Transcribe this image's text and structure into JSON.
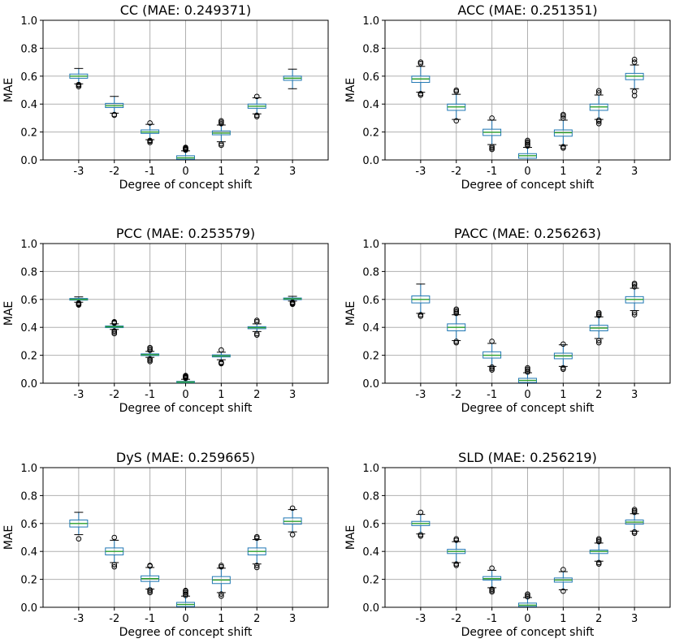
{
  "chart_data": [
    {
      "type": "box",
      "title": "CC (MAE: 0.249371)",
      "xlabel": "Degree of concept shift",
      "ylabel": "MAE",
      "ylim": [
        0,
        1.0
      ],
      "categories": [
        "-3",
        "-2",
        "-1",
        "0",
        "1",
        "2",
        "3"
      ],
      "yticks": [
        "0.0",
        "0.2",
        "0.4",
        "0.6",
        "0.8",
        "1.0"
      ],
      "boxes": [
        {
          "q1": 0.585,
          "median": 0.6,
          "q3": 0.615,
          "whislo": 0.545,
          "whishi": 0.655,
          "fliers": [
            0.525,
            0.535,
            0.54
          ]
        },
        {
          "q1": 0.375,
          "median": 0.388,
          "q3": 0.405,
          "whislo": 0.335,
          "whishi": 0.455,
          "fliers": [
            0.32,
            0.325
          ]
        },
        {
          "q1": 0.19,
          "median": 0.2,
          "q3": 0.215,
          "whislo": 0.145,
          "whishi": 0.255,
          "fliers": [
            0.125,
            0.135,
            0.14,
            0.265
          ]
        },
        {
          "q1": 0.005,
          "median": 0.015,
          "q3": 0.03,
          "whislo": 0.0,
          "whishi": 0.065,
          "fliers": [
            0.07,
            0.075,
            0.08,
            0.085,
            0.09
          ]
        },
        {
          "q1": 0.18,
          "median": 0.192,
          "q3": 0.208,
          "whislo": 0.13,
          "whishi": 0.25,
          "fliers": [
            0.105,
            0.115,
            0.26,
            0.27,
            0.28
          ]
        },
        {
          "q1": 0.37,
          "median": 0.385,
          "q3": 0.4,
          "whislo": 0.33,
          "whishi": 0.445,
          "fliers": [
            0.31,
            0.32,
            0.455
          ]
        },
        {
          "q1": 0.57,
          "median": 0.585,
          "q3": 0.6,
          "whislo": 0.51,
          "whishi": 0.65,
          "fliers": []
        }
      ]
    },
    {
      "type": "box",
      "title": "ACC (MAE: 0.251351)",
      "xlabel": "Degree of concept shift",
      "ylabel": "MAE",
      "ylim": [
        0,
        1.0
      ],
      "categories": [
        "-3",
        "-2",
        "-1",
        "0",
        "1",
        "2",
        "3"
      ],
      "yticks": [
        "0.0",
        "0.2",
        "0.4",
        "0.6",
        "0.8",
        "1.0"
      ],
      "boxes": [
        {
          "q1": 0.555,
          "median": 0.58,
          "q3": 0.6,
          "whislo": 0.485,
          "whishi": 0.67,
          "fliers": [
            0.465,
            0.475,
            0.69,
            0.7
          ]
        },
        {
          "q1": 0.355,
          "median": 0.38,
          "q3": 0.4,
          "whislo": 0.29,
          "whishi": 0.47,
          "fliers": [
            0.28,
            0.49,
            0.5
          ]
        },
        {
          "q1": 0.175,
          "median": 0.198,
          "q3": 0.22,
          "whislo": 0.11,
          "whishi": 0.285,
          "fliers": [
            0.075,
            0.085,
            0.095,
            0.3
          ]
        },
        {
          "q1": 0.012,
          "median": 0.03,
          "q3": 0.045,
          "whislo": 0.0,
          "whishi": 0.09,
          "fliers": [
            0.1,
            0.11,
            0.12,
            0.13,
            0.14
          ]
        },
        {
          "q1": 0.17,
          "median": 0.195,
          "q3": 0.215,
          "whislo": 0.105,
          "whishi": 0.285,
          "fliers": [
            0.085,
            0.095,
            0.3,
            0.315,
            0.325
          ]
        },
        {
          "q1": 0.355,
          "median": 0.38,
          "q3": 0.4,
          "whislo": 0.29,
          "whishi": 0.465,
          "fliers": [
            0.26,
            0.275,
            0.285,
            0.48,
            0.495
          ]
        },
        {
          "q1": 0.575,
          "median": 0.6,
          "q3": 0.62,
          "whislo": 0.51,
          "whishi": 0.68,
          "fliers": [
            0.46,
            0.49,
            0.7,
            0.72
          ]
        }
      ]
    },
    {
      "type": "box",
      "title": "PCC (MAE: 0.253579)",
      "xlabel": "Degree of concept shift",
      "ylabel": "MAE",
      "ylim": [
        0,
        1.0
      ],
      "categories": [
        "-3",
        "-2",
        "-1",
        "0",
        "1",
        "2",
        "3"
      ],
      "yticks": [
        "0.0",
        "0.2",
        "0.4",
        "0.6",
        "0.8",
        "1.0"
      ],
      "boxes": [
        {
          "q1": 0.595,
          "median": 0.6,
          "q3": 0.607,
          "whislo": 0.58,
          "whishi": 0.618,
          "fliers": [
            0.56,
            0.565,
            0.57,
            0.575
          ]
        },
        {
          "q1": 0.398,
          "median": 0.404,
          "q3": 0.41,
          "whislo": 0.385,
          "whishi": 0.425,
          "fliers": [
            0.355,
            0.365,
            0.375,
            0.43,
            0.435,
            0.44
          ]
        },
        {
          "q1": 0.198,
          "median": 0.204,
          "q3": 0.21,
          "whislo": 0.185,
          "whishi": 0.228,
          "fliers": [
            0.155,
            0.165,
            0.175,
            0.235,
            0.245,
            0.255
          ]
        },
        {
          "q1": 0.003,
          "median": 0.008,
          "q3": 0.013,
          "whislo": 0.0,
          "whishi": 0.028,
          "fliers": [
            0.035,
            0.04,
            0.045,
            0.05,
            0.055
          ]
        },
        {
          "q1": 0.188,
          "median": 0.195,
          "q3": 0.203,
          "whislo": 0.168,
          "whishi": 0.222,
          "fliers": [
            0.14,
            0.145,
            0.15,
            0.238
          ]
        },
        {
          "q1": 0.39,
          "median": 0.398,
          "q3": 0.405,
          "whislo": 0.37,
          "whishi": 0.425,
          "fliers": [
            0.345,
            0.355,
            0.44,
            0.45
          ]
        },
        {
          "q1": 0.598,
          "median": 0.604,
          "q3": 0.61,
          "whislo": 0.588,
          "whishi": 0.622,
          "fliers": [
            0.565,
            0.57,
            0.575,
            0.58
          ]
        }
      ]
    },
    {
      "type": "box",
      "title": "PACC (MAE: 0.256263)",
      "xlabel": "Degree of concept shift",
      "ylabel": "MAE",
      "ylim": [
        0,
        1.0
      ],
      "categories": [
        "-3",
        "-2",
        "-1",
        "0",
        "1",
        "2",
        "3"
      ],
      "yticks": [
        "0.0",
        "0.2",
        "0.4",
        "0.6",
        "0.8",
        "1.0"
      ],
      "boxes": [
        {
          "q1": 0.575,
          "median": 0.6,
          "q3": 0.625,
          "whislo": 0.5,
          "whishi": 0.71,
          "fliers": [
            0.48,
            0.49
          ]
        },
        {
          "q1": 0.375,
          "median": 0.4,
          "q3": 0.425,
          "whislo": 0.305,
          "whishi": 0.49,
          "fliers": [
            0.29,
            0.3,
            0.5,
            0.51,
            0.52,
            0.53
          ]
        },
        {
          "q1": 0.18,
          "median": 0.2,
          "q3": 0.225,
          "whislo": 0.12,
          "whishi": 0.285,
          "fliers": [
            0.095,
            0.105,
            0.115,
            0.3
          ]
        },
        {
          "q1": 0.005,
          "median": 0.02,
          "q3": 0.035,
          "whislo": 0.0,
          "whishi": 0.075,
          "fliers": [
            0.08,
            0.09,
            0.1,
            0.11
          ]
        },
        {
          "q1": 0.175,
          "median": 0.195,
          "q3": 0.215,
          "whislo": 0.12,
          "whishi": 0.275,
          "fliers": [
            0.1,
            0.11,
            0.28
          ]
        },
        {
          "q1": 0.375,
          "median": 0.395,
          "q3": 0.415,
          "whislo": 0.32,
          "whishi": 0.475,
          "fliers": [
            0.29,
            0.305,
            0.485,
            0.495,
            0.505
          ]
        },
        {
          "q1": 0.575,
          "median": 0.6,
          "q3": 0.62,
          "whislo": 0.52,
          "whishi": 0.68,
          "fliers": [
            0.49,
            0.505,
            0.69,
            0.705,
            0.715
          ]
        }
      ]
    },
    {
      "type": "box",
      "title": "DyS (MAE: 0.259665)",
      "xlabel": "Degree of concept shift",
      "ylabel": "MAE",
      "ylim": [
        0,
        1.0
      ],
      "categories": [
        "-3",
        "-2",
        "-1",
        "0",
        "1",
        "2",
        "3"
      ],
      "yticks": [
        "0.0",
        "0.2",
        "0.4",
        "0.6",
        "0.8",
        "1.0"
      ],
      "boxes": [
        {
          "q1": 0.575,
          "median": 0.6,
          "q3": 0.625,
          "whislo": 0.52,
          "whishi": 0.68,
          "fliers": [
            0.49
          ]
        },
        {
          "q1": 0.375,
          "median": 0.4,
          "q3": 0.425,
          "whislo": 0.32,
          "whishi": 0.48,
          "fliers": [
            0.29,
            0.305,
            0.5
          ]
        },
        {
          "q1": 0.185,
          "median": 0.205,
          "q3": 0.225,
          "whislo": 0.13,
          "whishi": 0.285,
          "fliers": [
            0.105,
            0.115,
            0.125,
            0.295,
            0.3
          ]
        },
        {
          "q1": 0.005,
          "median": 0.02,
          "q3": 0.035,
          "whislo": 0.0,
          "whishi": 0.08,
          "fliers": [
            0.085,
            0.095,
            0.105,
            0.115,
            0.12
          ]
        },
        {
          "q1": 0.17,
          "median": 0.195,
          "q3": 0.22,
          "whislo": 0.105,
          "whishi": 0.28,
          "fliers": [
            0.08,
            0.095,
            0.29,
            0.3
          ]
        },
        {
          "q1": 0.375,
          "median": 0.4,
          "q3": 0.425,
          "whislo": 0.31,
          "whishi": 0.485,
          "fliers": [
            0.285,
            0.3,
            0.495,
            0.505
          ]
        },
        {
          "q1": 0.595,
          "median": 0.615,
          "q3": 0.64,
          "whislo": 0.54,
          "whishi": 0.7,
          "fliers": [
            0.52,
            0.71
          ]
        }
      ]
    },
    {
      "type": "box",
      "title": "SLD (MAE: 0.256219)",
      "xlabel": "Degree of concept shift",
      "ylabel": "MAE",
      "ylim": [
        0,
        1.0
      ],
      "categories": [
        "-3",
        "-2",
        "-1",
        "0",
        "1",
        "2",
        "3"
      ],
      "yticks": [
        "0.0",
        "0.2",
        "0.4",
        "0.6",
        "0.8",
        "1.0"
      ],
      "boxes": [
        {
          "q1": 0.585,
          "median": 0.6,
          "q3": 0.615,
          "whislo": 0.525,
          "whishi": 0.665,
          "fliers": [
            0.51,
            0.52,
            0.68
          ]
        },
        {
          "q1": 0.385,
          "median": 0.4,
          "q3": 0.415,
          "whislo": 0.32,
          "whishi": 0.47,
          "fliers": [
            0.3,
            0.31,
            0.48,
            0.49
          ]
        },
        {
          "q1": 0.195,
          "median": 0.205,
          "q3": 0.22,
          "whislo": 0.14,
          "whishi": 0.265,
          "fliers": [
            0.11,
            0.12,
            0.13,
            0.28
          ]
        },
        {
          "q1": 0.005,
          "median": 0.015,
          "q3": 0.03,
          "whislo": 0.0,
          "whishi": 0.07,
          "fliers": [
            0.075,
            0.085,
            0.095
          ]
        },
        {
          "q1": 0.18,
          "median": 0.195,
          "q3": 0.21,
          "whislo": 0.125,
          "whishi": 0.255,
          "fliers": [
            0.115,
            0.27
          ]
        },
        {
          "q1": 0.385,
          "median": 0.4,
          "q3": 0.41,
          "whislo": 0.33,
          "whishi": 0.46,
          "fliers": [
            0.31,
            0.32,
            0.47,
            0.48,
            0.49
          ]
        },
        {
          "q1": 0.595,
          "median": 0.61,
          "q3": 0.625,
          "whislo": 0.545,
          "whishi": 0.67,
          "fliers": [
            0.53,
            0.54,
            0.68,
            0.69,
            0.7
          ]
        }
      ]
    }
  ],
  "colors": {
    "box": "#1f77b4",
    "median": "#2ca02c",
    "grid": "#b0b0b0",
    "whisker": "#1f77b4",
    "cap": "#000000",
    "flier": "#000000"
  }
}
